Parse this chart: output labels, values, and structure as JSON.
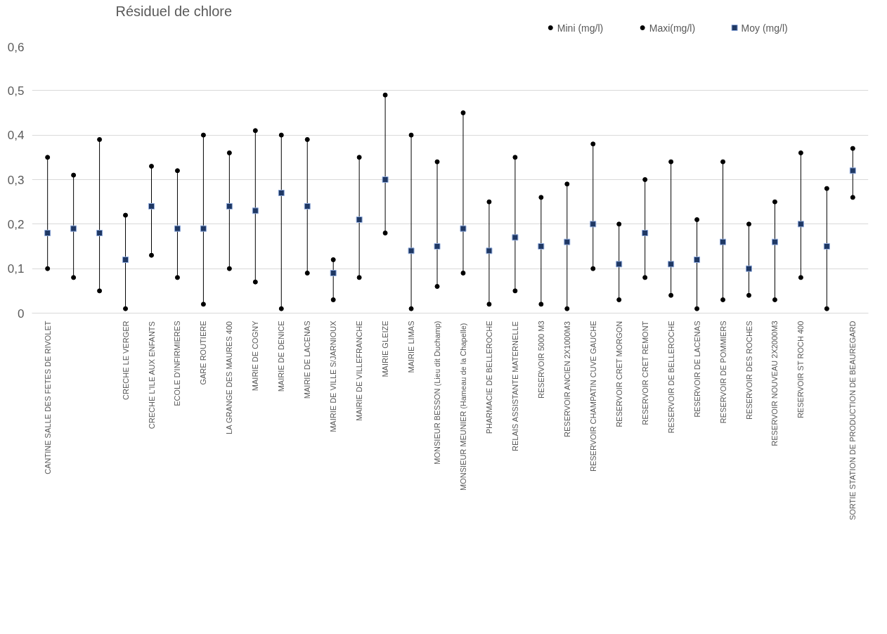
{
  "chart_data": {
    "type": "scatter",
    "title": "Résiduel de chlore",
    "categories": [
      "CANTINE SALLE DES FETES DE RIVOLET",
      null,
      null,
      "CRECHE LE VERGER",
      "CRECHE L'ILE AUX ENFANTS",
      "ECOLE D'INFIRMIERES",
      "GARE ROUTIERE",
      "LA GRANGE DES MAURES 400",
      "MAIRIE DE COGNY",
      "MAIRIE DE DENICE",
      "MAIRIE DE LACENAS",
      "MAIRIE DE VILLE S/JARNIOUX",
      "MAIRIE DE VILLEFRANCHE",
      "MAIRIE GLEIZE",
      "MAIRIE LIMAS",
      "MONSIEUR BESSON (Lieu dit Duchamp)",
      "MONSIEUR MEUNIER  (Hameau de la Chapelle)",
      "PHARMACIE DE BELLEROCHE",
      "RELAIS ASSISTANTE MATERNELLE",
      "RESERVOIR 5000 M3",
      "RESERVOIR ANCIEN 2X1000M3",
      "RESERVOIR CHAMPATIN CUVE GAUCHE",
      "RESERVOIR CRET MORGON",
      "RESERVOIR CRET REMONT",
      "RESERVOIR DE BELLEROCHE",
      "RESERVOIR DE LACENAS",
      "RESERVOIR DE POMMIERS",
      "RESERVOIR DES ROCHES",
      "RESERVOIR NOUVEAU 2X2000M3",
      "RESERVOIR ST ROCH 400",
      null,
      "SORTIE STATION DE PRODUCTION DE BEAUREGARD"
    ],
    "series": [
      {
        "name": "Mini (mg/l)",
        "color": "#000000",
        "marker": "circle",
        "values": [
          0.1,
          0.08,
          0.05,
          0.01,
          0.13,
          0.08,
          0.02,
          0.1,
          0.07,
          0.01,
          0.09,
          0.03,
          0.08,
          0.18,
          0.01,
          0.06,
          0.09,
          0.02,
          0.05,
          0.02,
          0.01,
          0.1,
          0.03,
          0.08,
          0.04,
          0.01,
          0.03,
          0.04,
          0.03,
          0.08,
          0.01,
          0.26
        ]
      },
      {
        "name": "Maxi(mg/l)",
        "color": "#000000",
        "marker": "circle",
        "values": [
          0.35,
          0.31,
          0.39,
          0.22,
          0.33,
          0.32,
          0.4,
          0.36,
          0.41,
          0.4,
          0.39,
          0.12,
          0.35,
          0.49,
          0.4,
          0.34,
          0.45,
          0.25,
          0.35,
          0.26,
          0.29,
          0.38,
          0.2,
          0.3,
          0.34,
          0.21,
          0.34,
          0.2,
          0.25,
          0.36,
          0.28,
          0.37
        ]
      },
      {
        "name": "Moy (mg/l)",
        "color": "#1f3864",
        "marker": "square",
        "values": [
          0.18,
          0.19,
          0.18,
          0.12,
          0.24,
          0.19,
          0.19,
          0.24,
          0.23,
          0.27,
          0.24,
          0.09,
          0.21,
          0.3,
          0.14,
          0.15,
          0.19,
          0.14,
          0.17,
          0.15,
          0.16,
          0.2,
          0.11,
          0.18,
          0.11,
          0.12,
          0.16,
          0.1,
          0.16,
          0.2,
          0.15,
          0.32
        ]
      }
    ],
    "ylim": [
      0,
      0.6
    ],
    "yticks": [
      0,
      {
        "value": 0.1,
        "label": "0,1"
      },
      {
        "value": 0.2,
        "label": "0,2"
      },
      {
        "value": 0.3,
        "label": "0,3"
      },
      {
        "value": 0.4,
        "label": "0,4"
      },
      {
        "value": 0.5,
        "label": "0,5"
      },
      {
        "value": 0.6,
        "label": "0,6"
      }
    ],
    "grid": "y",
    "legend": "top right"
  }
}
